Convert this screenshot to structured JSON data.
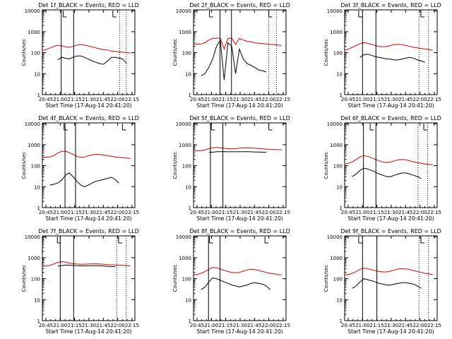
{
  "colors": {
    "events": "#000000",
    "lld": "#dd0000",
    "background": "#ffffff",
    "axis": "#000000"
  },
  "x_tick_labels": [
    "20:45",
    "21:00",
    "21:15",
    "21:30",
    "21:45",
    "22:00",
    "22:15"
  ],
  "y_tick_labels": [
    "1",
    "10",
    "100",
    "1000",
    "10000"
  ],
  "chart_data": [
    {
      "type": "line",
      "title": "Det 1f_BLACK = Events, RED = LLD",
      "xlabel": "Start Time (17-Aug-14 20:41:20)",
      "ylabel": "Counts/sec",
      "x_range": [
        "20:41:20",
        "22:18"
      ],
      "ylim": [
        1,
        11000
      ],
      "y_scale": "log",
      "grid": false,
      "x_start": "20:41:20",
      "x_step_minutes": 4,
      "series": [
        {
          "color": "#dd0000",
          "values": [
            130,
            140,
            170,
            200,
            230,
            210,
            190,
            180,
            200,
            230,
            240,
            230,
            210,
            190,
            170,
            150,
            140,
            135,
            120,
            115,
            110,
            105,
            100,
            95
          ]
        },
        {
          "color": "#000000",
          "values": [
            null,
            null,
            null,
            null,
            45,
            60,
            55,
            50,
            60,
            70,
            70,
            60,
            50,
            40,
            35,
            30,
            28,
            40,
            60,
            60,
            55,
            50,
            30,
            null
          ]
        }
      ],
      "markers": {
        "solid_vertical_lines": [
          "21:01",
          "21:14"
        ],
        "dotted_vertical_lines": [
          "22:02",
          "22:09"
        ],
        "flags": [
          "21:03",
          "21:55"
        ]
      }
    },
    {
      "type": "line",
      "title": "Det 2f_BLACK = Events, RED = LLD",
      "xlabel": "Start Time (17-Aug-14 20:41:20)",
      "ylabel": "Counts/sec",
      "x_range": [
        "20:41:20",
        "22:18"
      ],
      "ylim": [
        1,
        11000
      ],
      "y_scale": "log",
      "grid": false,
      "x_start": "20:41:20",
      "x_step_minutes": 4,
      "series": [
        {
          "color": "#dd0000",
          "values": [
            250,
            255,
            260,
            300,
            400,
            480,
            500,
            480,
            150,
            480,
            490,
            250,
            480,
            400,
            350,
            330,
            300,
            280,
            270,
            260,
            250,
            240,
            230,
            220
          ]
        },
        {
          "color": "#000000",
          "values": [
            null,
            null,
            8,
            10,
            20,
            50,
            200,
            400,
            5,
            300,
            200,
            10,
            150,
            50,
            30,
            25,
            20,
            15,
            14,
            12,
            null,
            null,
            null,
            null
          ]
        }
      ],
      "markers": {
        "solid_vertical_lines": [
          "21:09",
          "21:21"
        ],
        "dotted_vertical_lines": [
          "22:00",
          "22:08"
        ],
        "flags": [
          "20:58",
          "22:00"
        ]
      }
    },
    {
      "type": "line",
      "title": "Det 3f_BLACK = Events, RED = LLD",
      "xlabel": "Start Time (17-Aug-14 20:41:20)",
      "ylabel": "Counts/sec",
      "x_range": [
        "20:41:20",
        "22:18"
      ],
      "ylim": [
        1,
        11000
      ],
      "y_scale": "log",
      "grid": false,
      "x_start": "20:41:20",
      "x_step_minutes": 4,
      "series": [
        {
          "color": "#dd0000",
          "values": [
            130,
            150,
            180,
            220,
            270,
            300,
            280,
            250,
            220,
            200,
            190,
            200,
            220,
            240,
            250,
            240,
            220,
            200,
            180,
            170,
            160,
            150,
            140,
            130
          ]
        },
        {
          "color": "#000000",
          "values": [
            null,
            null,
            null,
            null,
            60,
            80,
            85,
            75,
            65,
            60,
            55,
            50,
            50,
            45,
            45,
            50,
            55,
            60,
            55,
            45,
            40,
            35,
            null,
            null
          ]
        }
      ],
      "markers": {
        "solid_vertical_lines": [
          "21:00",
          "21:14"
        ],
        "dotted_vertical_lines": [
          "21:59",
          "22:09"
        ],
        "flags": [
          "20:56",
          "22:01"
        ]
      }
    },
    {
      "type": "line",
      "title": "Det 4f_BLACK = Events, RED = LLD",
      "xlabel": "Start Time (17-Aug-14 20:41:20)",
      "ylabel": "Counts/sec",
      "x_range": [
        "20:41:20",
        "22:18"
      ],
      "ylim": [
        1,
        11000
      ],
      "y_scale": "log",
      "grid": false,
      "x_start": "20:41:20",
      "x_step_minutes": 4,
      "series": [
        {
          "color": "#dd0000",
          "values": [
            250,
            255,
            260,
            300,
            400,
            480,
            500,
            420,
            350,
            280,
            250,
            260,
            300,
            330,
            350,
            340,
            320,
            300,
            280,
            260,
            250,
            240,
            230,
            220
          ]
        },
        {
          "color": "#000000",
          "values": [
            null,
            null,
            12,
            13,
            15,
            20,
            35,
            45,
            30,
            18,
            12,
            10,
            12,
            15,
            18,
            20,
            22,
            25,
            28,
            22,
            15,
            null,
            null,
            null
          ]
        }
      ],
      "markers": {
        "solid_vertical_lines": [
          "21:05",
          "21:16"
        ],
        "dotted_vertical_lines": [],
        "flags": [
          "21:04",
          "22:05"
        ]
      }
    },
    {
      "type": "line",
      "title": "Det 5f_BLACK = Events, RED = LLD",
      "xlabel": "Start Time (17-Aug-14 20:41:20)",
      "ylabel": "Counts/sec",
      "x_range": [
        "20:41:20",
        "22:18"
      ],
      "ylim": [
        1,
        11000
      ],
      "y_scale": "log",
      "grid": false,
      "x_start": "20:41:20",
      "x_step_minutes": 4,
      "series": [
        {
          "color": "#dd0000",
          "values": [
            500,
            510,
            520,
            560,
            650,
            720,
            750,
            720,
            680,
            650,
            640,
            650,
            680,
            700,
            710,
            700,
            680,
            660,
            640,
            620,
            600,
            590,
            580,
            570
          ]
        },
        {
          "color": "#000000",
          "values": [
            null,
            null,
            null,
            null,
            430,
            440,
            460,
            470,
            470,
            460,
            460,
            460,
            470,
            470,
            470,
            460,
            450,
            450,
            440,
            430,
            null,
            null,
            null,
            null
          ]
        }
      ],
      "markers": {
        "solid_vertical_lines": [
          "20:59",
          "21:12"
        ],
        "dotted_vertical_lines": [],
        "flags": [
          "21:00",
          "22:00"
        ]
      }
    },
    {
      "type": "line",
      "title": "Det 6f_BLACK = Events, RED = LLD",
      "xlabel": "Start Time (17-Aug-14 20:41:20)",
      "ylabel": "Counts/sec",
      "x_range": [
        "20:41:20",
        "22:18"
      ],
      "ylim": [
        1,
        11000
      ],
      "y_scale": "log",
      "grid": false,
      "x_start": "20:41:20",
      "x_step_minutes": 4,
      "series": [
        {
          "color": "#dd0000",
          "values": [
            120,
            130,
            150,
            200,
            260,
            300,
            280,
            240,
            200,
            170,
            150,
            140,
            150,
            170,
            190,
            200,
            190,
            170,
            150,
            140,
            130,
            120,
            115,
            110
          ]
        },
        {
          "color": "#000000",
          "values": [
            null,
            null,
            30,
            40,
            60,
            75,
            70,
            60,
            50,
            40,
            35,
            30,
            30,
            35,
            40,
            45,
            45,
            40,
            35,
            30,
            25,
            null,
            null,
            null
          ]
        }
      ],
      "markers": {
        "solid_vertical_lines": [
          "21:01",
          "21:14"
        ],
        "dotted_vertical_lines": [
          "21:58",
          "22:08"
        ],
        "flags": [
          "21:08",
          "22:04"
        ]
      }
    },
    {
      "type": "line",
      "title": "Det 7f_BLACK = Events, RED = LLD",
      "xlabel": "Start Time (17-Aug-14 20:41:20)",
      "ylabel": "Counts/sec",
      "x_range": [
        "20:41:20",
        "22:18"
      ],
      "ylim": [
        1,
        11000
      ],
      "y_scale": "log",
      "grid": false,
      "x_start": "20:41:20",
      "x_step_minutes": 4,
      "series": [
        {
          "color": "#dd0000",
          "values": [
            400,
            410,
            430,
            500,
            600,
            650,
            620,
            560,
            520,
            500,
            490,
            490,
            500,
            510,
            510,
            500,
            490,
            470,
            460,
            450,
            440,
            430,
            420,
            410
          ]
        },
        {
          "color": "#000000",
          "values": [
            null,
            null,
            null,
            null,
            400,
            420,
            450,
            440,
            430,
            420,
            410,
            410,
            410,
            420,
            420,
            410,
            400,
            390,
            380,
            370,
            null,
            null,
            null,
            null
          ]
        }
      ],
      "markers": {
        "solid_vertical_lines": [
          "21:00",
          "21:14"
        ],
        "dotted_vertical_lines": [
          "21:59",
          "22:09"
        ],
        "flags": [
          "20:57",
          "22:01"
        ]
      }
    },
    {
      "type": "line",
      "title": "Det 8f_BLACK = Events, RED = LLD",
      "xlabel": "Start Time (17-Aug-14 20:41:20)",
      "ylabel": "Counts/sec",
      "x_range": [
        "20:41:20",
        "22:18"
      ],
      "ylim": [
        1,
        11000
      ],
      "y_scale": "log",
      "grid": false,
      "x_start": "20:41:20",
      "x_step_minutes": 4,
      "series": [
        {
          "color": "#dd0000",
          "values": [
            150,
            160,
            180,
            220,
            280,
            350,
            330,
            290,
            250,
            220,
            200,
            190,
            200,
            230,
            260,
            280,
            270,
            250,
            220,
            200,
            180,
            170,
            160,
            150
          ]
        },
        {
          "color": "#000000",
          "values": [
            null,
            null,
            30,
            40,
            70,
            110,
            100,
            85,
            70,
            60,
            50,
            45,
            40,
            45,
            50,
            60,
            65,
            60,
            55,
            45,
            30,
            null,
            null,
            null
          ]
        }
      ],
      "markers": {
        "solid_vertical_lines": [
          "20:57",
          "21:09"
        ],
        "dotted_vertical_lines": [],
        "flags": [
          "20:58",
          "21:56"
        ]
      }
    },
    {
      "type": "line",
      "title": "Det 9f_BLACK = Events, RED = LLD",
      "xlabel": "Start Time (17-Aug-14 20:41:20)",
      "ylabel": "Counts/sec",
      "x_range": [
        "20:41:20",
        "22:18"
      ],
      "ylim": [
        1,
        11000
      ],
      "y_scale": "log",
      "grid": false,
      "x_start": "20:41:20",
      "x_step_minutes": 4,
      "series": [
        {
          "color": "#dd0000",
          "values": [
            150,
            160,
            180,
            220,
            280,
            320,
            300,
            270,
            240,
            220,
            210,
            210,
            230,
            260,
            290,
            300,
            290,
            270,
            240,
            220,
            200,
            180,
            170,
            160
          ]
        },
        {
          "color": "#000000",
          "values": [
            null,
            null,
            35,
            45,
            70,
            100,
            90,
            80,
            70,
            60,
            55,
            50,
            50,
            55,
            60,
            65,
            65,
            60,
            55,
            45,
            35,
            null,
            null,
            null
          ]
        }
      ],
      "markers": {
        "solid_vertical_lines": [
          "21:00",
          "21:15"
        ],
        "dotted_vertical_lines": [
          "21:59",
          "22:09"
        ],
        "flags": [
          "20:56",
          "22:01"
        ]
      }
    }
  ]
}
